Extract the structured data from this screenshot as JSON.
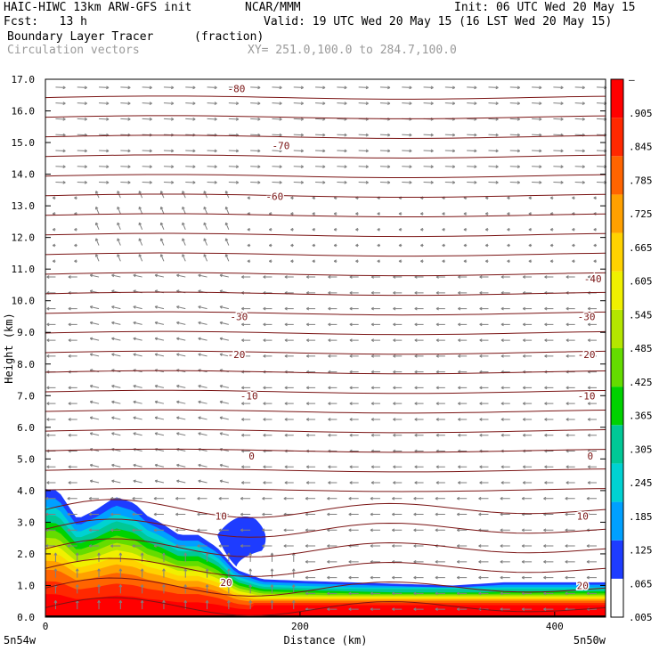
{
  "header": {
    "line1_left": "HAIC-HIWC 13km ARW-GFS init",
    "line1_mid": "NCAR/MMM",
    "line1_right": "Init: 06 UTC Wed 20 May 15",
    "line2_left": "Fcst:   13 h",
    "line2_right": "Valid: 19 UTC Wed 20 May 15 (16 LST Wed 20 May 15)",
    "line3_left": "Boundary Layer Tracer",
    "line3_mid": "(fraction)",
    "line4_left": "Circulation vectors",
    "line4_mid": "XY= 251.0,100.0 to 284.7,100.0"
  },
  "colors": {
    "contour": "#7a1414",
    "vector": "#808080",
    "tracer_scale": [
      "#ffffff",
      "#1e3cff",
      "#00a0ff",
      "#00d2d2",
      "#00c896",
      "#00d200",
      "#64dc00",
      "#b4e600",
      "#f0f000",
      "#ffd200",
      "#ffa000",
      "#ff6400",
      "#ff2800",
      "#ff0000"
    ]
  },
  "chart_data": {
    "type": "cross-section",
    "ylabel": "Height (km)",
    "xlabel": "Distance (km)",
    "xlim": [
      0,
      440
    ],
    "ylim": [
      0,
      17
    ],
    "x_ticks": [
      "0",
      "200",
      "400"
    ],
    "x_tick_values": [
      0,
      200,
      400
    ],
    "x_end_labels": [
      "5n54w",
      "5n50w"
    ],
    "y_ticks": [
      "0.0",
      "1.0",
      "2.0",
      "3.0",
      "4.0",
      "5.0",
      "6.0",
      "7.0",
      "8.0",
      "9.0",
      "10.0",
      "11.0",
      "12.0",
      "13.0",
      "14.0",
      "15.0",
      "16.0",
      "17.0"
    ],
    "colorbar_labels": [
      "–",
      ".905",
      ".845",
      ".785",
      ".725",
      ".665",
      ".605",
      ".545",
      ".485",
      ".425",
      ".365",
      ".305",
      ".245",
      ".185",
      ".125",
      ".065",
      ".005"
    ],
    "temperature_contour_labels": [
      {
        "text": "-80",
        "x": 150,
        "z": 16.7
      },
      {
        "text": "-70",
        "x": 185,
        "z": 14.9
      },
      {
        "text": "-60",
        "x": 180,
        "z": 13.3
      },
      {
        "text": "-40",
        "x": 430,
        "z": 10.7
      },
      {
        "text": "-30",
        "x": 152,
        "z": 9.5
      },
      {
        "text": "-30",
        "x": 425,
        "z": 9.5
      },
      {
        "text": "-20",
        "x": 150,
        "z": 8.3
      },
      {
        "text": "-20",
        "x": 425,
        "z": 8.3
      },
      {
        "text": "-10",
        "x": 160,
        "z": 7.0
      },
      {
        "text": "-10",
        "x": 425,
        "z": 7.0
      },
      {
        "text": "0",
        "x": 162,
        "z": 5.1
      },
      {
        "text": "0",
        "x": 428,
        "z": 5.1
      },
      {
        "text": "10",
        "x": 138,
        "z": 3.2
      },
      {
        "text": "10",
        "x": 422,
        "z": 3.2
      },
      {
        "text": "20",
        "x": 142,
        "z": 1.1
      },
      {
        "text": "20",
        "x": 422,
        "z": 1.0
      }
    ],
    "tracer_top_profile": {
      "x": [
        0,
        10,
        25,
        40,
        55,
        70,
        80,
        90,
        105,
        120,
        135,
        150,
        170,
        200,
        240,
        280,
        320,
        360,
        400,
        440
      ],
      "z": [
        4.05,
        4.0,
        3.1,
        3.4,
        3.8,
        3.6,
        3.2,
        3.0,
        2.6,
        2.6,
        2.2,
        1.5,
        1.2,
        1.15,
        1.1,
        1.05,
        1.0,
        1.1,
        1.1,
        1.1
      ]
    }
  }
}
